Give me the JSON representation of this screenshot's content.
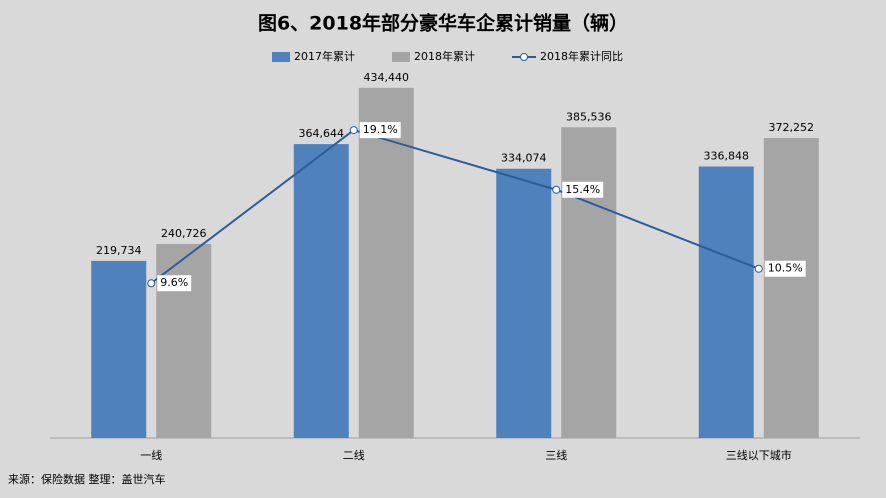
{
  "chart_data": {
    "type": "bar-line",
    "title": "图6、2018年部分豪华车企累计销量（辆）",
    "source": "来源：保险数据  整理：盖世汽车",
    "categories": [
      "一线",
      "二线",
      "三线",
      "三线以下城市"
    ],
    "series": [
      {
        "name": "2017年累计",
        "color": "#4f81bd",
        "type": "bar",
        "values": [
          219734,
          364644,
          334074,
          336848
        ],
        "value_labels": [
          "219,734",
          "364,644",
          "334,074",
          "336,848"
        ]
      },
      {
        "name": "2018年累计",
        "color": "#a5a5a5",
        "type": "bar",
        "values": [
          240726,
          434440,
          385536,
          372252
        ],
        "value_labels": [
          "240,726",
          "434,440",
          "385,536",
          "372,252"
        ]
      },
      {
        "name": "2018年累计同比",
        "color": "#2e5c9a",
        "type": "line",
        "axis": "y2",
        "values": [
          9.6,
          19.1,
          15.4,
          10.5
        ],
        "value_labels": [
          "9.6%",
          "19.1%",
          "15.4%",
          "10.5%"
        ]
      }
    ],
    "ylim": [
      0,
      500000
    ],
    "y2lim": [
      0,
      25
    ]
  }
}
